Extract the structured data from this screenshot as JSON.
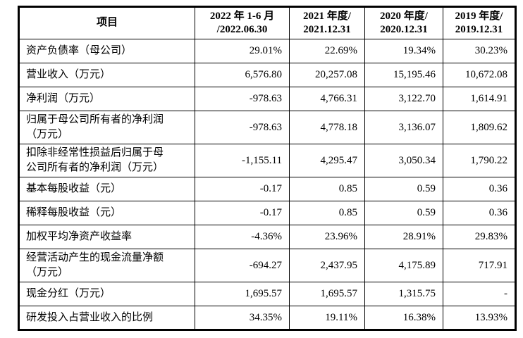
{
  "table": {
    "columns": [
      "项目",
      "2022 年 1-6 月\n/2022.06.30",
      "2021 年度/\n2021.12.31",
      "2020 年度/\n2020.12.31",
      "2019 年度/\n2019.12.31"
    ],
    "rows": [
      {
        "label": "资产负债率（母公司）",
        "values": [
          "29.01%",
          "22.69%",
          "19.34%",
          "30.23%"
        ]
      },
      {
        "label": "营业收入（万元）",
        "values": [
          "6,576.80",
          "20,257.08",
          "15,195.46",
          "10,672.08"
        ]
      },
      {
        "label": "净利润（万元）",
        "values": [
          "-978.63",
          "4,766.31",
          "3,122.70",
          "1,614.91"
        ]
      },
      {
        "label": "归属于母公司所有者的净利润\n（万元）",
        "values": [
          "-978.63",
          "4,778.18",
          "3,136.07",
          "1,809.62"
        ]
      },
      {
        "label": "扣除非经常性损益后归属于母\n公司所有者的净利润（万元）",
        "values": [
          "-1,155.11",
          "4,295.47",
          "3,050.34",
          "1,790.22"
        ]
      },
      {
        "label": "基本每股收益（元）",
        "values": [
          "-0.17",
          "0.85",
          "0.59",
          "0.36"
        ]
      },
      {
        "label": "稀释每股收益（元）",
        "values": [
          "-0.17",
          "0.85",
          "0.59",
          "0.36"
        ]
      },
      {
        "label": "加权平均净资产收益率",
        "values": [
          "-4.36%",
          "23.96%",
          "28.91%",
          "29.83%"
        ]
      },
      {
        "label": "经营活动产生的现金流量净额\n（万元）",
        "values": [
          "-694.27",
          "2,437.95",
          "4,175.89",
          "717.91"
        ]
      },
      {
        "label": "现金分红（万元）",
        "values": [
          "1,695.57",
          "1,695.57",
          "1,315.75",
          "-"
        ]
      },
      {
        "label": "研发投入占营业收入的比例",
        "values": [
          "34.35%",
          "19.11%",
          "16.38%",
          "13.93%"
        ]
      }
    ],
    "colors": {
      "border": "#000000",
      "text": "#000000",
      "background": "#ffffff"
    }
  }
}
